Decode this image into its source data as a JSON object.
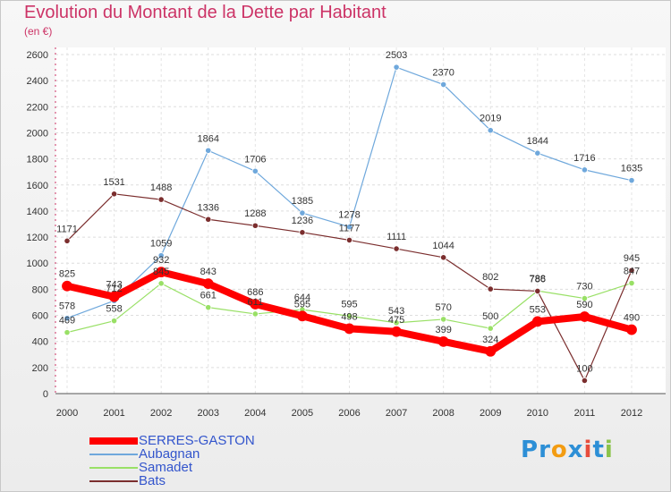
{
  "title": "Evolution du Montant de la Dette par Habitant",
  "subtitle": "(en €)",
  "logo": {
    "letters": [
      {
        "ch": "P",
        "color": "#2d8fd6"
      },
      {
        "ch": "r",
        "color": "#2d8fd6"
      },
      {
        "ch": "o",
        "color": "#f39c12"
      },
      {
        "ch": "x",
        "color": "#2d8fd6"
      },
      {
        "ch": "i",
        "color": "#e74c3c"
      },
      {
        "ch": "t",
        "color": "#2d8fd6"
      },
      {
        "ch": "i",
        "color": "#8bc34a"
      }
    ]
  },
  "chart_data": {
    "type": "line",
    "title": "Evolution du Montant de la Dette par Habitant",
    "subtitle": "(en €)",
    "xlabel": "",
    "ylabel": "",
    "categories": [
      "2000",
      "2001",
      "2002",
      "2003",
      "2004",
      "2005",
      "2006",
      "2007",
      "2008",
      "2009",
      "2010",
      "2011",
      "2012"
    ],
    "ylim": [
      0,
      2600
    ],
    "yticks": [
      0,
      200,
      400,
      600,
      800,
      1000,
      1200,
      1400,
      1600,
      1800,
      2000,
      2200,
      2400,
      2600
    ],
    "grid": true,
    "legend": "bottom-left",
    "series": [
      {
        "name": "SERRES-GASTON",
        "color": "#ff0000",
        "width": 8,
        "values": [
          825,
          743,
          932,
          843,
          686,
          595,
          498,
          475,
          399,
          324,
          553,
          590,
          490
        ]
      },
      {
        "name": "Aubagnan",
        "color": "#6fa8dc",
        "width": 1.2,
        "values": [
          578,
          712,
          1059,
          1864,
          1706,
          1385,
          1278,
          2503,
          2370,
          2019,
          1844,
          1716,
          1635
        ]
      },
      {
        "name": "Samadet",
        "color": "#99e066",
        "width": 1.2,
        "values": [
          469,
          558,
          845,
          661,
          611,
          644,
          595,
          543,
          570,
          500,
          788,
          730,
          847
        ]
      },
      {
        "name": "Bats",
        "color": "#7b2e2e",
        "width": 1.2,
        "values": [
          1171,
          1531,
          1488,
          1336,
          1288,
          1236,
          1177,
          1111,
          1044,
          802,
          786,
          100,
          945
        ]
      }
    ]
  }
}
